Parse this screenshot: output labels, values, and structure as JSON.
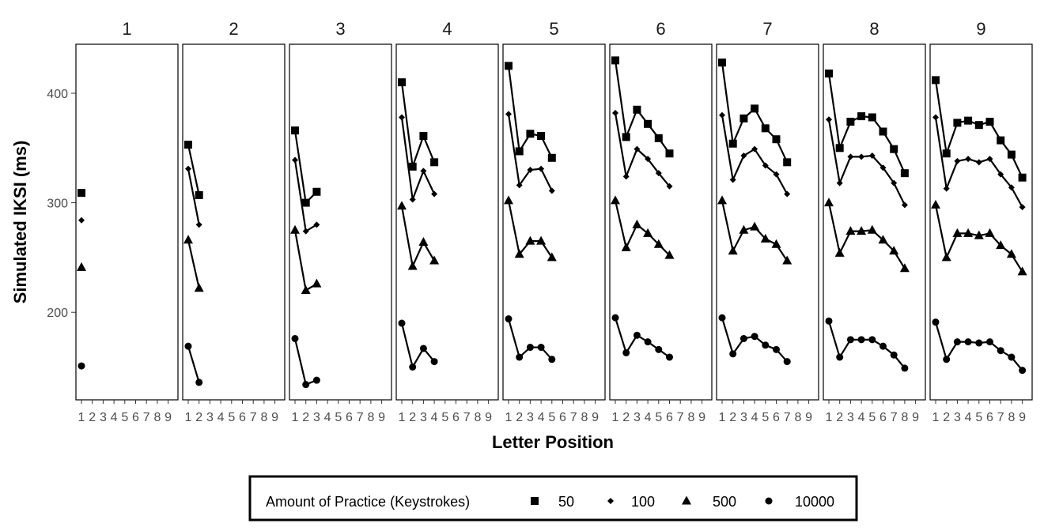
{
  "chart_data": {
    "type": "line",
    "xlabel": "Letter Position",
    "ylabel": "Simulated IKSI (ms)",
    "ylim": [
      120,
      445
    ],
    "yticks": [
      200,
      300,
      400
    ],
    "x_tick_labels": [
      "1",
      "2",
      "3",
      "4",
      "5",
      "6",
      "7",
      "8",
      "9"
    ],
    "facet_labels": [
      "1",
      "2",
      "3",
      "4",
      "5",
      "6",
      "7",
      "8",
      "9"
    ],
    "grid": false,
    "legend": {
      "title": "Amount of Practice (Keystrokes)",
      "placement": "bottom",
      "entries": [
        {
          "label": "50",
          "marker": "square"
        },
        {
          "label": "100",
          "marker": "diamond"
        },
        {
          "label": "500",
          "marker": "triangle"
        },
        {
          "label": "10000",
          "marker": "circle"
        }
      ]
    },
    "panels": [
      {
        "word_length": "1",
        "series": [
          {
            "name": "50",
            "values": [
              309
            ]
          },
          {
            "name": "100",
            "values": [
              284
            ]
          },
          {
            "name": "500",
            "values": [
              241
            ]
          },
          {
            "name": "10000",
            "values": [
              151
            ]
          }
        ]
      },
      {
        "word_length": "2",
        "series": [
          {
            "name": "50",
            "values": [
              353,
              307
            ]
          },
          {
            "name": "100",
            "values": [
              331,
              280
            ]
          },
          {
            "name": "500",
            "values": [
              266,
              222
            ]
          },
          {
            "name": "10000",
            "values": [
              169,
              136
            ]
          }
        ]
      },
      {
        "word_length": "3",
        "series": [
          {
            "name": "50",
            "values": [
              366,
              300,
              310
            ]
          },
          {
            "name": "100",
            "values": [
              339,
              274,
              280
            ]
          },
          {
            "name": "500",
            "values": [
              275,
              220,
              226
            ]
          },
          {
            "name": "10000",
            "values": [
              176,
              134,
              138
            ]
          }
        ]
      },
      {
        "word_length": "4",
        "series": [
          {
            "name": "50",
            "values": [
              410,
              333,
              361,
              337
            ]
          },
          {
            "name": "100",
            "values": [
              378,
              303,
              329,
              308
            ]
          },
          {
            "name": "500",
            "values": [
              297,
              242,
              264,
              247
            ]
          },
          {
            "name": "10000",
            "values": [
              190,
              150,
              167,
              155
            ]
          }
        ]
      },
      {
        "word_length": "5",
        "series": [
          {
            "name": "50",
            "values": [
              425,
              347,
              363,
              361,
              341
            ]
          },
          {
            "name": "100",
            "values": [
              381,
              316,
              330,
              331,
              311
            ]
          },
          {
            "name": "500",
            "values": [
              302,
              253,
              265,
              265,
              250
            ]
          },
          {
            "name": "10000",
            "values": [
              194,
              159,
              168,
              168,
              157
            ]
          }
        ]
      },
      {
        "word_length": "6",
        "series": [
          {
            "name": "50",
            "values": [
              430,
              360,
              385,
              372,
              359,
              345
            ]
          },
          {
            "name": "100",
            "values": [
              382,
              324,
              349,
              340,
              327,
              315
            ]
          },
          {
            "name": "500",
            "values": [
              302,
              259,
              280,
              272,
              262,
              252
            ]
          },
          {
            "name": "10000",
            "values": [
              195,
              163,
              179,
              173,
              166,
              159
            ]
          }
        ]
      },
      {
        "word_length": "7",
        "series": [
          {
            "name": "50",
            "values": [
              428,
              354,
              377,
              386,
              368,
              358,
              337
            ]
          },
          {
            "name": "100",
            "values": [
              380,
              321,
              343,
              349,
              334,
              326,
              308
            ]
          },
          {
            "name": "500",
            "values": [
              302,
              256,
              275,
              278,
              267,
              262,
              247
            ]
          },
          {
            "name": "10000",
            "values": [
              195,
              162,
              176,
              178,
              170,
              166,
              155
            ]
          }
        ]
      },
      {
        "word_length": "8",
        "series": [
          {
            "name": "50",
            "values": [
              418,
              350,
              374,
              379,
              378,
              365,
              349,
              327
            ]
          },
          {
            "name": "100",
            "values": [
              376,
              318,
              342,
              342,
              343,
              332,
              318,
              298
            ]
          },
          {
            "name": "500",
            "values": [
              300,
              254,
              274,
              274,
              275,
              266,
              256,
              240
            ]
          },
          {
            "name": "10000",
            "values": [
              192,
              159,
              175,
              175,
              175,
              169,
              161,
              149
            ]
          }
        ]
      },
      {
        "word_length": "9",
        "series": [
          {
            "name": "50",
            "values": [
              412,
              345,
              373,
              375,
              371,
              374,
              357,
              344,
              323
            ]
          },
          {
            "name": "100",
            "values": [
              378,
              313,
              338,
              340,
              337,
              340,
              326,
              314,
              296
            ]
          },
          {
            "name": "500",
            "values": [
              298,
              250,
              272,
              272,
              270,
              272,
              261,
              253,
              237
            ]
          },
          {
            "name": "10000",
            "values": [
              191,
              157,
              173,
              173,
              172,
              173,
              165,
              159,
              147
            ]
          }
        ]
      }
    ]
  }
}
